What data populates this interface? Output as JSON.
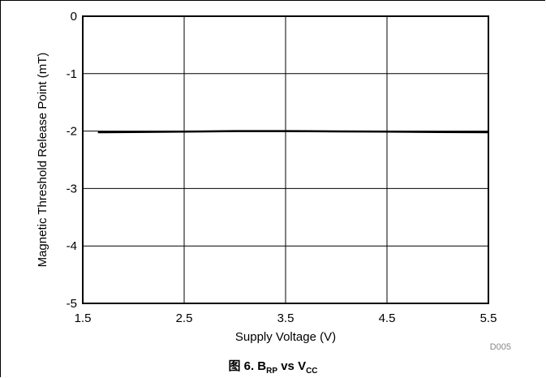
{
  "chart_data": {
    "type": "line",
    "title": "",
    "xlabel": "Supply Voltage (V)",
    "ylabel": "Magnetic Threshold Release Point (mT)",
    "xlim": [
      1.5,
      5.5
    ],
    "ylim": [
      -5,
      0
    ],
    "xticks": [
      "1.5",
      "2.5",
      "3.5",
      "4.5",
      "5.5"
    ],
    "yticks": [
      "0",
      "-1",
      "-2",
      "-3",
      "-4",
      "-5"
    ],
    "x_tick_values": [
      1.5,
      2.5,
      3.5,
      4.5,
      5.5
    ],
    "y_tick_values": [
      0,
      -1,
      -2,
      -3,
      -4,
      -5
    ],
    "grid": true,
    "series": [
      {
        "x": [
          1.65,
          2.0,
          2.5,
          3.0,
          3.5,
          4.0,
          4.5,
          5.0,
          5.5
        ],
        "y": [
          -2.02,
          -2.015,
          -2.01,
          -2.0,
          -2.0,
          -2.005,
          -2.01,
          -2.015,
          -2.02
        ]
      }
    ],
    "watermark": "D005"
  },
  "caption": {
    "prefix": "图 6. B",
    "sub1": "RP",
    "mid": " vs V",
    "sub2": "CC"
  },
  "colors": {
    "line": "#000000",
    "grid": "#000000",
    "watermark": "#888888"
  }
}
